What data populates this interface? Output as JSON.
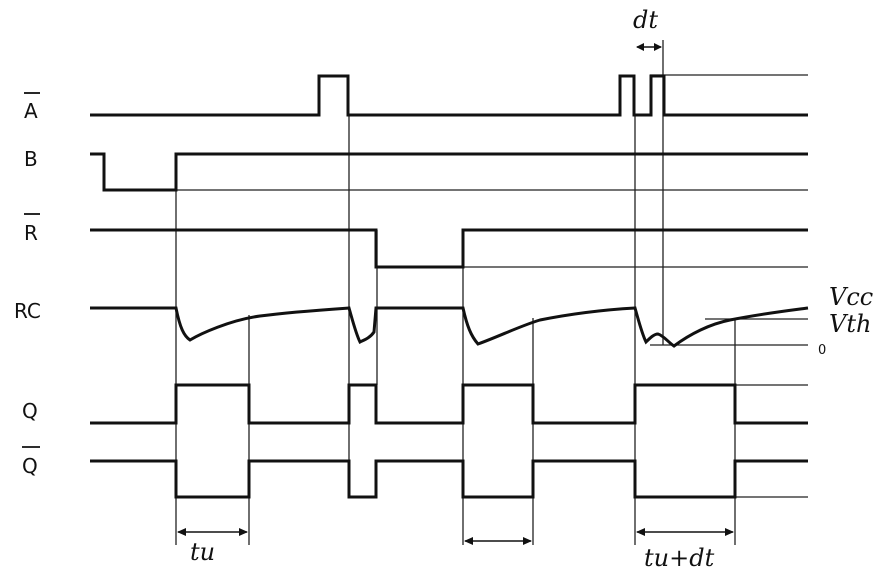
{
  "signals": {
    "a_bar": "A",
    "b": "B",
    "r_bar": "R",
    "rc": "RC",
    "q": "Q",
    "q_bar": "Q"
  },
  "annotations": {
    "dt": "dt",
    "vcc": "Vcc",
    "vth": "Vth",
    "zero": "0",
    "tu": "tu",
    "tu_dt": "tu+dt"
  },
  "colors": {
    "line": "#111111",
    "background": "#ffffff"
  }
}
